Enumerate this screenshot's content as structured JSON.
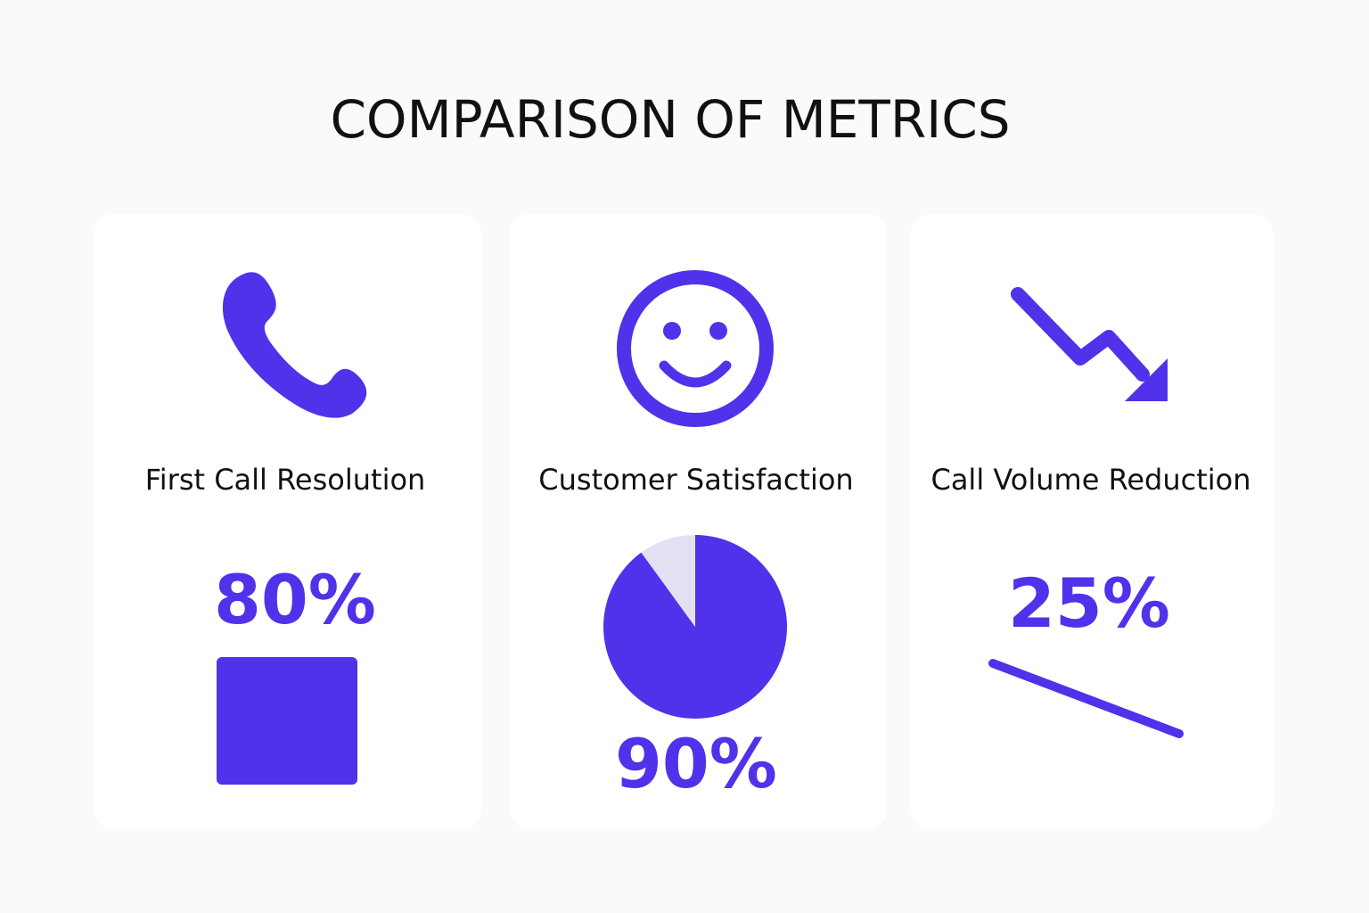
{
  "title": "COMPARISON OF METRICS",
  "cards": [
    {
      "label": "First Call Resolution",
      "value": "80%"
    },
    {
      "label": "Customer Satisfaction",
      "value": "90%",
      "pie": {
        "values": [
          90,
          10
        ],
        "colors": [
          "#5131ea",
          "#e4e0f4"
        ]
      }
    },
    {
      "label": "Call Volume Reduction",
      "value": "25%"
    }
  ]
}
